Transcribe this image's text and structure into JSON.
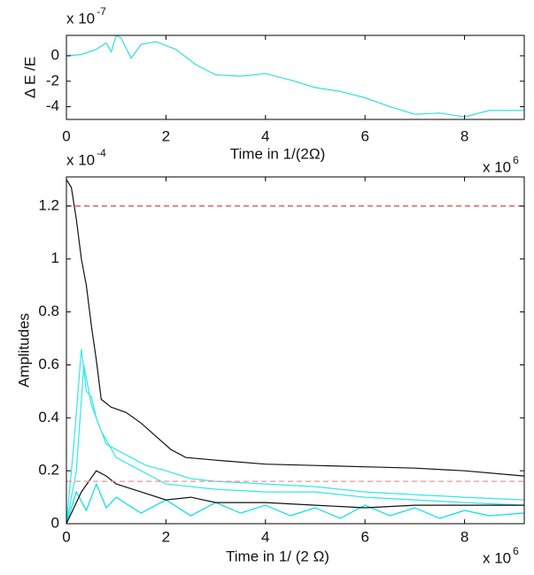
{
  "chart_data": [
    {
      "type": "line",
      "ylabel": "Δ E /E",
      "xlabel": "Time in 1/(2Ω)",
      "y_multiplier": {
        "base": "x 10",
        "exp": "-7"
      },
      "x_multiplier": {
        "base": "x 10",
        "exp": "6"
      },
      "xlim": [
        0,
        9.2
      ],
      "ylim": [
        -5,
        1.6
      ],
      "xticks": [
        0,
        2,
        4,
        6,
        8
      ],
      "yticks": [
        0,
        -2,
        -4
      ],
      "series": [
        {
          "color": "#33dde0",
          "dashed": false,
          "x": [
            0,
            0.3,
            0.6,
            0.8,
            0.9,
            1.0,
            1.1,
            1.2,
            1.3,
            1.5,
            1.8,
            2.2,
            2.6,
            3.0,
            3.5,
            4.0,
            4.5,
            5.0,
            5.5,
            6.0,
            6.5,
            7.0,
            7.5,
            8.0,
            8.5,
            9.2
          ],
          "values": [
            0,
            0.1,
            0.5,
            1.0,
            0.3,
            1.6,
            1.4,
            0.6,
            -0.2,
            0.9,
            1.1,
            0.5,
            -0.7,
            -1.5,
            -1.6,
            -1.4,
            -1.9,
            -2.5,
            -2.8,
            -3.3,
            -4.0,
            -4.6,
            -4.5,
            -4.8,
            -4.3,
            -4.3
          ]
        }
      ]
    },
    {
      "type": "line",
      "ylabel": "Amplitudes",
      "xlabel": "Time in 1/ (2 Ω)",
      "y_multiplier": {
        "base": "x 10",
        "exp": "-4"
      },
      "x_multiplier": {
        "base": "x 10",
        "exp": "6"
      },
      "xlim": [
        0,
        9.2
      ],
      "ylim": [
        0,
        1.31
      ],
      "xticks": [
        0,
        2,
        4,
        6,
        8
      ],
      "yticks": [
        0,
        0.2,
        0.4,
        0.6,
        0.8,
        1,
        1.2
      ],
      "series": [
        {
          "color": "#33e6e8",
          "dashed": false,
          "x": [
            0,
            0.15,
            0.3,
            0.4,
            0.5,
            0.6,
            0.8,
            1.0,
            1.3,
            1.6,
            2,
            2.5,
            3,
            4,
            5,
            6,
            7,
            8,
            9.2
          ],
          "values": [
            0,
            0.3,
            0.66,
            0.5,
            0.48,
            0.4,
            0.3,
            0.28,
            0.25,
            0.22,
            0.2,
            0.17,
            0.16,
            0.15,
            0.14,
            0.12,
            0.11,
            0.1,
            0.09
          ]
        },
        {
          "color": "#33e6e8",
          "dashed": false,
          "x": [
            0,
            0.2,
            0.35,
            0.5,
            0.7,
            1,
            1.5,
            2,
            3,
            4,
            5,
            6,
            7,
            8,
            9.2
          ],
          "values": [
            0,
            0.2,
            0.6,
            0.45,
            0.35,
            0.25,
            0.2,
            0.15,
            0.13,
            0.12,
            0.12,
            0.1,
            0.09,
            0.08,
            0.07
          ]
        },
        {
          "color": "#00e0e4",
          "dashed": false,
          "x": [
            0,
            0.2,
            0.4,
            0.6,
            0.8,
            1,
            1.5,
            2,
            2.5,
            3,
            3.5,
            4,
            4.5,
            5,
            5.5,
            6,
            6.5,
            7,
            7.5,
            8,
            8.5,
            9.2
          ],
          "values": [
            0,
            0.12,
            0.05,
            0.15,
            0.06,
            0.1,
            0.04,
            0.09,
            0.03,
            0.08,
            0.04,
            0.07,
            0.03,
            0.06,
            0.02,
            0.07,
            0.03,
            0.06,
            0.02,
            0.05,
            0.03,
            0.04
          ]
        },
        {
          "color": "#111111",
          "dashed": false,
          "x": [
            0,
            0.3,
            0.6,
            0.8,
            1,
            1.5,
            2,
            2.5,
            3,
            4,
            5,
            6,
            7,
            8,
            9.2
          ],
          "values": [
            0,
            0.12,
            0.2,
            0.18,
            0.15,
            0.12,
            0.09,
            0.1,
            0.08,
            0.08,
            0.07,
            0.06,
            0.07,
            0.07,
            0.07
          ]
        },
        {
          "color": "#111111",
          "dashed": false,
          "x": [
            0,
            0.1,
            0.2,
            0.3,
            0.4,
            0.5,
            0.6,
            0.7,
            0.9,
            1.2,
            1.5,
            1.8,
            2.1,
            2.4,
            3,
            4,
            5,
            6,
            7,
            8,
            9.2
          ],
          "values": [
            1.3,
            1.27,
            1.15,
            1.0,
            0.9,
            0.75,
            0.62,
            0.47,
            0.44,
            0.42,
            0.38,
            0.33,
            0.28,
            0.25,
            0.24,
            0.225,
            0.22,
            0.215,
            0.21,
            0.2,
            0.18
          ]
        },
        {
          "color": "#e04040",
          "dashed": true,
          "x": [
            0,
            9.2
          ],
          "values": [
            1.2,
            1.2
          ]
        },
        {
          "color": "#f09090",
          "dashed": true,
          "x": [
            0,
            9.2
          ],
          "values": [
            0.16,
            0.16
          ]
        }
      ]
    }
  ]
}
